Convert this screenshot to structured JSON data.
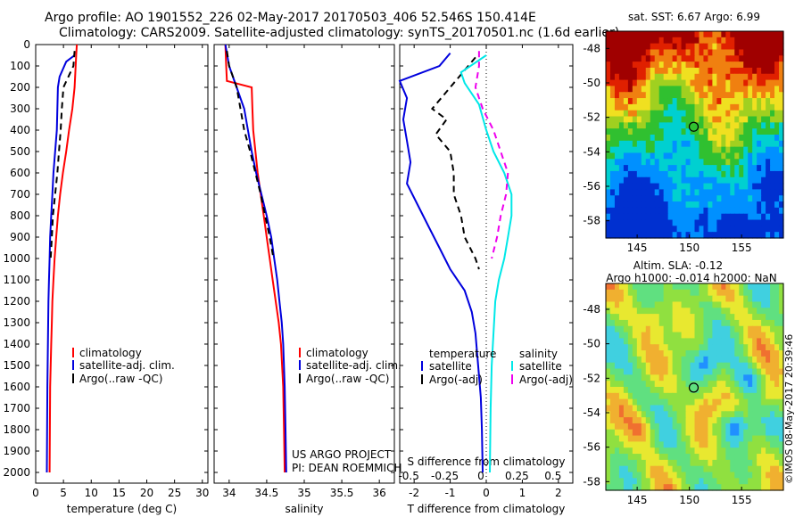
{
  "header": {
    "line1": "Argo profile: AO 1901552_226 02-May-2017 20170503_406 52.546S 150.414E",
    "line2": "Climatology: CARS2009. Satellite-adjusted climatology: synTS_20170501.nc (1.6d earlier)"
  },
  "colors": {
    "climatology": "#ff0000",
    "satellite": "#0000dd",
    "argo": "#000000",
    "salinity_satellite": "#00e8e8",
    "salinity_argo": "#ee00ee"
  },
  "chart_data": [
    {
      "type": "line",
      "xlabel": "temperature (deg C)",
      "ylabel": "",
      "xlim": [
        0,
        31
      ],
      "ylim": [
        2050,
        0
      ],
      "xticks": [
        0,
        5,
        10,
        15,
        20,
        25,
        30
      ],
      "yticks": [
        0,
        100,
        200,
        300,
        400,
        500,
        600,
        700,
        800,
        900,
        1000,
        1100,
        1200,
        1300,
        1400,
        1500,
        1600,
        1700,
        1800,
        1900,
        2000
      ],
      "series": [
        {
          "name": "climatology",
          "style": "solid",
          "color": "#ff0000",
          "x": [
            7.4,
            7.3,
            7.2,
            7.0,
            6.6,
            6.0,
            5.5,
            4.9,
            4.4,
            4.0,
            3.7,
            3.4,
            3.2,
            3.0,
            2.9,
            2.8,
            2.7,
            2.6,
            2.55,
            2.5
          ],
          "y": [
            0,
            50,
            100,
            200,
            300,
            400,
            500,
            600,
            700,
            800,
            900,
            1000,
            1100,
            1200,
            1300,
            1400,
            1500,
            1600,
            1800,
            2000
          ]
        },
        {
          "name": "satellite-adj. clim.",
          "style": "solid",
          "color": "#0000dd",
          "x": [
            7.0,
            5.5,
            4.3,
            4.0,
            3.9,
            3.8,
            3.5,
            3.2,
            3.0,
            2.8,
            2.6,
            2.5,
            2.4,
            2.3,
            2.25,
            2.2,
            2.15,
            2.1,
            2.05,
            2.0
          ],
          "y": [
            50,
            80,
            150,
            200,
            300,
            400,
            500,
            600,
            700,
            800,
            900,
            1000,
            1100,
            1200,
            1300,
            1400,
            1500,
            1600,
            1800,
            2000
          ]
        },
        {
          "name": "Argo(..raw -QC)",
          "style": "dashed",
          "color": "#000000",
          "x": [
            7.0,
            6.8,
            5.0,
            4.7,
            4.5,
            4.2,
            3.9,
            3.5,
            3.1,
            2.9,
            2.7
          ],
          "y": [
            30,
            100,
            200,
            300,
            400,
            500,
            600,
            700,
            800,
            900,
            1000
          ]
        }
      ],
      "legend": [
        "climatology",
        "satellite-adj. clim.",
        "Argo(..raw -QC)"
      ],
      "legend_position": "bottom-right"
    },
    {
      "type": "line",
      "xlabel": "salinity",
      "xlim": [
        33.8,
        36.2
      ],
      "ylim": [
        2050,
        0
      ],
      "xticks": [
        34,
        34.5,
        35,
        35.5,
        36
      ],
      "series": [
        {
          "name": "climatology",
          "style": "solid",
          "color": "#ff0000",
          "x": [
            33.95,
            33.96,
            33.97,
            34.3,
            34.31,
            34.32,
            34.35,
            34.38,
            34.42,
            34.46,
            34.5,
            34.54,
            34.58,
            34.62,
            34.66,
            34.69,
            34.72,
            34.73,
            34.74
          ],
          "y": [
            0,
            100,
            170,
            200,
            300,
            400,
            500,
            600,
            700,
            800,
            900,
            1000,
            1100,
            1200,
            1300,
            1400,
            1600,
            1800,
            2000
          ]
        },
        {
          "name": "satellite-adj. clim.",
          "style": "solid",
          "color": "#0000dd",
          "x": [
            33.95,
            34.0,
            34.05,
            34.2,
            34.25,
            34.3,
            34.36,
            34.43,
            34.5,
            34.56,
            34.6,
            34.64,
            34.67,
            34.7,
            34.72,
            34.74,
            34.75,
            34.76
          ],
          "y": [
            0,
            100,
            150,
            300,
            400,
            500,
            600,
            700,
            800,
            900,
            1000,
            1100,
            1200,
            1300,
            1400,
            1600,
            1800,
            2000
          ]
        },
        {
          "name": "Argo(..raw -QC)",
          "style": "dashed",
          "color": "#000000",
          "x": [
            33.97,
            34.0,
            34.1,
            34.15,
            34.2,
            34.28,
            34.35,
            34.42,
            34.48,
            34.54,
            34.59
          ],
          "y": [
            30,
            100,
            200,
            300,
            400,
            500,
            600,
            700,
            800,
            900,
            1000
          ]
        }
      ],
      "legend": [
        "climatology",
        "satellite-adj. clim.",
        "Argo(..raw -QC)"
      ],
      "legend_position": "bottom-right",
      "credit1": "US ARGO PROJECT",
      "credit2": "PI: DEAN ROEMMICH"
    },
    {
      "type": "line",
      "xlabel": "T difference from climatology",
      "xlabel_top": "S difference from climatology",
      "xlim": [
        -2.4,
        2.4
      ],
      "ylim": [
        2050,
        0
      ],
      "xticks": [
        -2,
        -1,
        0,
        1,
        2
      ],
      "sticks": [
        -0.5,
        -0.25,
        0,
        0.25,
        0.5
      ],
      "sticks_labels": [
        "-0.5",
        "-0.25",
        "0",
        "0.25",
        "0.5"
      ],
      "series": [
        {
          "name": "temperature satellite",
          "style": "solid",
          "color": "#0000dd",
          "x": [
            -1.0,
            -1.3,
            -2.4,
            -2.2,
            -2.3,
            -2.2,
            -2.1,
            -2.2,
            -1.9,
            -1.6,
            -1.3,
            -1.0,
            -0.6,
            -0.4,
            -0.3,
            -0.25,
            -0.2,
            -0.15,
            -0.12,
            -0.1
          ],
          "y": [
            40,
            100,
            170,
            250,
            350,
            450,
            550,
            650,
            750,
            850,
            950,
            1050,
            1150,
            1250,
            1350,
            1450,
            1550,
            1650,
            1800,
            2000
          ]
        },
        {
          "name": "temperature Argo(-adj)",
          "style": "dashed",
          "color": "#000000",
          "x": [
            -0.3,
            -0.5,
            -1.0,
            -1.5,
            -1.1,
            -1.4,
            -1.0,
            -0.9,
            -0.9,
            -0.7,
            -0.6,
            -0.3,
            -0.2
          ],
          "y": [
            60,
            100,
            200,
            300,
            350,
            420,
            500,
            600,
            700,
            800,
            900,
            1000,
            1050
          ]
        },
        {
          "name": "salinity satellite",
          "style": "solid",
          "color": "#00e8e8",
          "x": [
            0.0,
            -0.7,
            -0.6,
            -0.2,
            0.0,
            0.2,
            0.5,
            0.7,
            0.7,
            0.6,
            0.5,
            0.35,
            0.25,
            0.2,
            0.15,
            0.12,
            0.1
          ],
          "y": [
            50,
            130,
            180,
            280,
            400,
            500,
            600,
            700,
            800,
            900,
            1000,
            1100,
            1200,
            1350,
            1500,
            1700,
            2000
          ]
        },
        {
          "name": "salinity Argo(-adj)",
          "style": "dashed",
          "color": "#ee00ee",
          "x": [
            -0.2,
            -0.2,
            -0.3,
            -0.1,
            0.2,
            0.4,
            0.6,
            0.55,
            0.4,
            0.3,
            0.15
          ],
          "y": [
            30,
            100,
            200,
            300,
            400,
            500,
            600,
            700,
            800,
            900,
            1000
          ]
        }
      ],
      "legend_temperature": "temperature",
      "legend_salinity": "salinity",
      "legend_items": [
        "satellite",
        "Argo(-adj)"
      ]
    },
    {
      "type": "heatmap",
      "title": "sat. SST: 6.67 Argo: 6.99",
      "xlim": [
        142,
        159
      ],
      "ylim": [
        -59,
        -47
      ],
      "xticks": [
        145,
        150,
        155
      ],
      "yticks": [
        -48,
        -50,
        -52,
        -54,
        -56,
        -58
      ],
      "marker": {
        "lon": 150.414,
        "lat": -52.546
      }
    },
    {
      "type": "heatmap",
      "title1": "Altim. SLA: -0.12",
      "title2": "Argo h1000: -0.014 h2000: NaN",
      "xlim": [
        142,
        159
      ],
      "ylim": [
        -58.5,
        -46.5
      ],
      "xticks": [
        145,
        150,
        155
      ],
      "yticks": [
        -48,
        -50,
        -52,
        -54,
        -56,
        -58
      ],
      "marker": {
        "lon": 150.414,
        "lat": -52.546
      }
    }
  ],
  "stamp": "©IMOS 08-May-2017 20:39:46"
}
